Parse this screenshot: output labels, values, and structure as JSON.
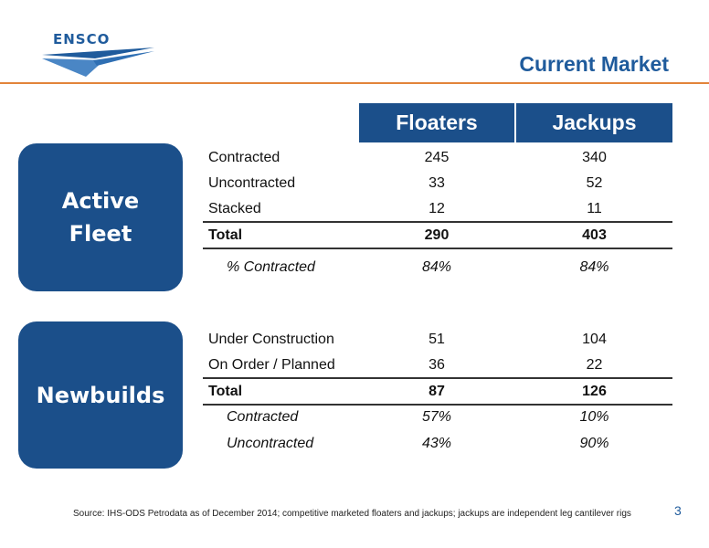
{
  "logo": {
    "text": "ENSCO"
  },
  "title": "Current Market",
  "columns": [
    "Floaters",
    "Jackups"
  ],
  "active_fleet": {
    "label_line1": "Active",
    "label_line2": "Fleet",
    "rows": [
      {
        "label": "Contracted",
        "floaters": "245",
        "jackups": "340"
      },
      {
        "label": "Uncontracted",
        "floaters": "33",
        "jackups": "52"
      },
      {
        "label": "Stacked",
        "floaters": "12",
        "jackups": "11"
      }
    ],
    "total": {
      "label": "Total",
      "floaters": "290",
      "jackups": "403"
    },
    "pct": {
      "label": "% Contracted",
      "floaters": "84%",
      "jackups": "84%"
    }
  },
  "newbuilds": {
    "label": "Newbuilds",
    "rows": [
      {
        "label": "Under Construction",
        "floaters": "51",
        "jackups": "104"
      },
      {
        "label": "On Order / Planned",
        "floaters": "36",
        "jackups": "22"
      }
    ],
    "total": {
      "label": "Total",
      "floaters": "87",
      "jackups": "126"
    },
    "sub": [
      {
        "label": "Contracted",
        "floaters": "57%",
        "jackups": "10%"
      },
      {
        "label": "Uncontracted",
        "floaters": "43%",
        "jackups": "90%"
      }
    ]
  },
  "source": "Source: IHS-ODS Petrodata as of December 2014; competitive marketed floaters and jackups; jackups are independent leg cantilever rigs",
  "page_number": "3",
  "colors": {
    "brand_blue": "#1b4f8a",
    "accent_orange": "#e2843a"
  }
}
